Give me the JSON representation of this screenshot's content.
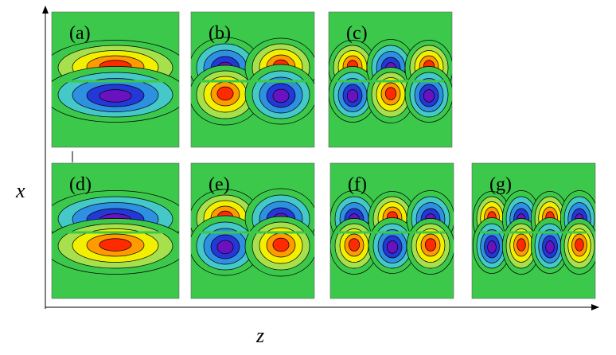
{
  "axes": {
    "x_label": "x",
    "z_label": "z"
  },
  "panels": [
    {
      "label": "(a)"
    },
    {
      "label": "(b)"
    },
    {
      "label": "(c)"
    },
    {
      "label": "(d)"
    },
    {
      "label": "(e)"
    },
    {
      "label": "(f)"
    },
    {
      "label": "(g)"
    }
  ]
}
